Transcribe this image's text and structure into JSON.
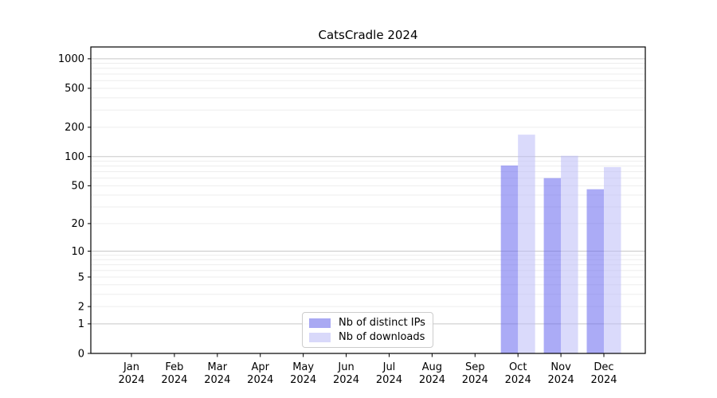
{
  "chart_data": {
    "type": "bar",
    "title": "CatsCradle 2024",
    "months": [
      "Jan",
      "Feb",
      "Mar",
      "Apr",
      "May",
      "Jun",
      "Jul",
      "Aug",
      "Sep",
      "Oct",
      "Nov",
      "Dec"
    ],
    "year": "2024",
    "series": [
      {
        "name": "Nb of distinct IPs",
        "color": "rgba(102,102,238,0.55)",
        "legend_color": "#a9a9f3",
        "values": [
          0,
          0,
          0,
          0,
          0,
          0,
          0,
          0,
          0,
          81,
          60,
          46
        ]
      },
      {
        "name": "Nb of downloads",
        "color": "rgba(187,187,247,0.55)",
        "legend_color": "#d9d9fa",
        "values": [
          0,
          0,
          0,
          0,
          0,
          0,
          0,
          0,
          0,
          168,
          102,
          78
        ]
      }
    ],
    "xlabel": "",
    "ylabel": "",
    "yscale": "log1p",
    "ylim": [
      0,
      1320
    ],
    "yticks": [
      0,
      1,
      2,
      5,
      10,
      20,
      50,
      100,
      200,
      500,
      1000
    ],
    "grid": {
      "on": true,
      "major_color": "#c8c8c8",
      "minor_color": "#ededed"
    },
    "axis_color": "#000000",
    "legend": {
      "position": "lower center"
    }
  }
}
